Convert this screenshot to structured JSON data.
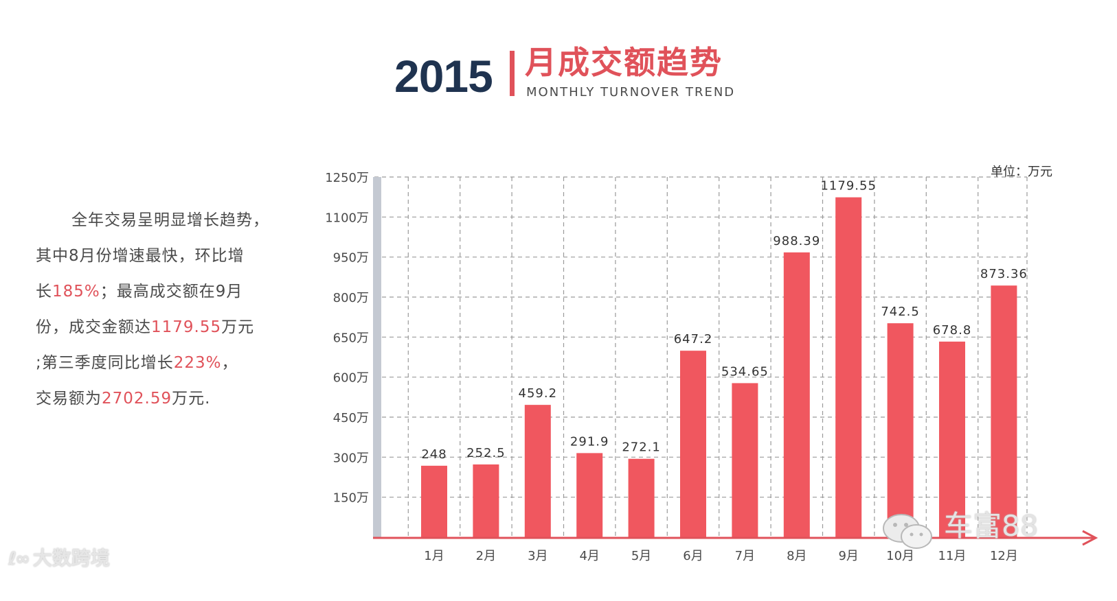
{
  "header": {
    "year": "2015",
    "title_cn": "月成交额趋势",
    "title_en": "MONTHLY TURNOVER TREND"
  },
  "summary": {
    "line1": "全年交易呈明显增长趋势，",
    "line2": "其中8月份增速最快，环比增",
    "line3_prefix": "长",
    "line3_hl": "185%",
    "line3_suffix": "；最高成交额在9月",
    "line4_prefix": "份，成交金额达",
    "line4_hl": "1179.55",
    "line4_suffix": "万元",
    "line5_prefix": ";第三季度同比增长",
    "line5_hl": "223%",
    "line5_suffix": "，",
    "line6_prefix": "交易额为",
    "line6_hl": "2702.59",
    "line6_suffix": "万元."
  },
  "watermarks": {
    "left_logo": "ℓ∞",
    "left_text": "大数跨境",
    "right_text": "车富88",
    "right_icon": "wechat-icon"
  },
  "colors": {
    "bar": "#f0575f",
    "axis_red": "#e0525a",
    "left_axis": "#c4c9d2",
    "grid": "#9a9a9a",
    "title_navy": "#1f3350"
  },
  "chart_data": {
    "type": "bar",
    "unit_label": "单位：万元",
    "categories": [
      "1月",
      "2月",
      "3月",
      "4月",
      "5月",
      "6月",
      "7月",
      "8月",
      "9月",
      "10月",
      "11月",
      "12月"
    ],
    "values": [
      248,
      252.5,
      459.2,
      291.9,
      272.1,
      647.2,
      534.65,
      988.39,
      1179.55,
      742.5,
      678.8,
      873.36
    ],
    "value_labels": [
      "248",
      "252.5",
      "459.2",
      "291.9",
      "272.1",
      "647.2",
      "534.65",
      "988.39",
      "1179.55",
      "742.5",
      "678.8",
      "873.36"
    ],
    "ytick_values": [
      150,
      300,
      450,
      600,
      650,
      800,
      950,
      1100,
      1250
    ],
    "ytick_labels": [
      "150万",
      "300万",
      "450万",
      "600万",
      "650万",
      "800万",
      "950万",
      "1100万",
      "1250万"
    ],
    "ylim": [
      0,
      1250
    ],
    "grid": true,
    "legend": "none"
  }
}
